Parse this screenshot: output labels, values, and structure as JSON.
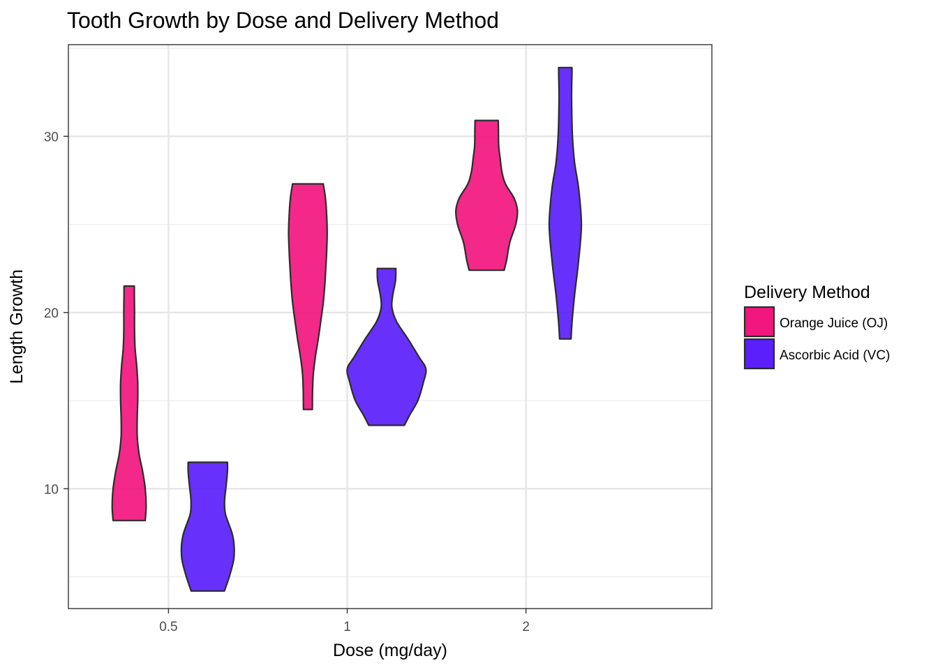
{
  "chart_data": {
    "type": "violin",
    "title": "Tooth Growth by Dose and Delivery Method",
    "xlabel": "Dose (mg/day)",
    "ylabel": "Length Growth",
    "categories": [
      "0.5",
      "1",
      "2"
    ],
    "y_ticks": [
      10,
      20,
      30
    ],
    "ylim": [
      3.2,
      35.2
    ],
    "grid": true,
    "legend": {
      "title": "Delivery Method",
      "position": "right",
      "items": [
        {
          "label": "Orange Juice (OJ)",
          "color": "#f2167f"
        },
        {
          "label": "Ascorbic Acid (VC)",
          "color": "#5a1ffb"
        }
      ]
    },
    "series": [
      {
        "key": "OJ",
        "color": "#f2167f",
        "violins": [
          {
            "category": "0.5",
            "profile": [
              {
                "y": 8.2,
                "w": 0.09
              },
              {
                "y": 9.0,
                "w": 0.095
              },
              {
                "y": 10.0,
                "w": 0.09
              },
              {
                "y": 11.0,
                "w": 0.075
              },
              {
                "y": 12.0,
                "w": 0.055
              },
              {
                "y": 13.0,
                "w": 0.045
              },
              {
                "y": 14.0,
                "w": 0.045
              },
              {
                "y": 15.0,
                "w": 0.048
              },
              {
                "y": 16.0,
                "w": 0.048
              },
              {
                "y": 17.0,
                "w": 0.042
              },
              {
                "y": 18.0,
                "w": 0.033
              },
              {
                "y": 19.0,
                "w": 0.03
              },
              {
                "y": 20.0,
                "w": 0.03
              },
              {
                "y": 21.0,
                "w": 0.029
              },
              {
                "y": 21.5,
                "w": 0.029
              }
            ]
          },
          {
            "category": "1",
            "profile": [
              {
                "y": 14.5,
                "w": 0.025
              },
              {
                "y": 15.5,
                "w": 0.026
              },
              {
                "y": 16.5,
                "w": 0.03
              },
              {
                "y": 17.5,
                "w": 0.042
              },
              {
                "y": 18.5,
                "w": 0.058
              },
              {
                "y": 19.5,
                "w": 0.072
              },
              {
                "y": 20.5,
                "w": 0.085
              },
              {
                "y": 21.5,
                "w": 0.094
              },
              {
                "y": 22.5,
                "w": 0.1
              },
              {
                "y": 23.5,
                "w": 0.105
              },
              {
                "y": 24.5,
                "w": 0.108
              },
              {
                "y": 25.5,
                "w": 0.105
              },
              {
                "y": 26.5,
                "w": 0.098
              },
              {
                "y": 27.3,
                "w": 0.086
              }
            ]
          },
          {
            "category": "2",
            "profile": [
              {
                "y": 22.4,
                "w": 0.098
              },
              {
                "y": 23.0,
                "w": 0.112
              },
              {
                "y": 24.0,
                "w": 0.13
              },
              {
                "y": 25.0,
                "w": 0.163
              },
              {
                "y": 25.8,
                "w": 0.172
              },
              {
                "y": 26.5,
                "w": 0.153
              },
              {
                "y": 27.3,
                "w": 0.105
              },
              {
                "y": 28.0,
                "w": 0.085
              },
              {
                "y": 28.8,
                "w": 0.075
              },
              {
                "y": 29.5,
                "w": 0.067
              },
              {
                "y": 30.3,
                "w": 0.066
              },
              {
                "y": 30.9,
                "w": 0.065
              }
            ]
          }
        ]
      },
      {
        "key": "VC",
        "color": "#5a1ffb",
        "violins": [
          {
            "category": "0.5",
            "profile": [
              {
                "y": 4.2,
                "w": 0.093
              },
              {
                "y": 5.0,
                "w": 0.12
              },
              {
                "y": 6.0,
                "w": 0.145
              },
              {
                "y": 6.8,
                "w": 0.147
              },
              {
                "y": 7.5,
                "w": 0.135
              },
              {
                "y": 8.5,
                "w": 0.1
              },
              {
                "y": 9.0,
                "w": 0.094
              },
              {
                "y": 9.5,
                "w": 0.095
              },
              {
                "y": 10.2,
                "w": 0.103
              },
              {
                "y": 11.0,
                "w": 0.11
              },
              {
                "y": 11.5,
                "w": 0.11
              }
            ]
          },
          {
            "category": "1",
            "profile": [
              {
                "y": 13.6,
                "w": 0.1
              },
              {
                "y": 14.2,
                "w": 0.13
              },
              {
                "y": 15.0,
                "w": 0.175
              },
              {
                "y": 16.0,
                "w": 0.205
              },
              {
                "y": 16.8,
                "w": 0.22
              },
              {
                "y": 17.5,
                "w": 0.18
              },
              {
                "y": 18.5,
                "w": 0.12
              },
              {
                "y": 19.5,
                "w": 0.055
              },
              {
                "y": 20.3,
                "w": 0.03
              },
              {
                "y": 21.0,
                "w": 0.035
              },
              {
                "y": 21.8,
                "w": 0.05
              },
              {
                "y": 22.5,
                "w": 0.052
              }
            ]
          },
          {
            "category": "2",
            "profile": [
              {
                "y": 18.5,
                "w": 0.032
              },
              {
                "y": 19.5,
                "w": 0.038
              },
              {
                "y": 21.0,
                "w": 0.052
              },
              {
                "y": 23.0,
                "w": 0.075
              },
              {
                "y": 25.0,
                "w": 0.09
              },
              {
                "y": 27.0,
                "w": 0.075
              },
              {
                "y": 28.5,
                "w": 0.052
              },
              {
                "y": 30.0,
                "w": 0.04
              },
              {
                "y": 31.5,
                "w": 0.036
              },
              {
                "y": 32.5,
                "w": 0.035
              },
              {
                "y": 33.5,
                "w": 0.037
              },
              {
                "y": 33.9,
                "w": 0.037
              }
            ]
          }
        ]
      }
    ]
  }
}
